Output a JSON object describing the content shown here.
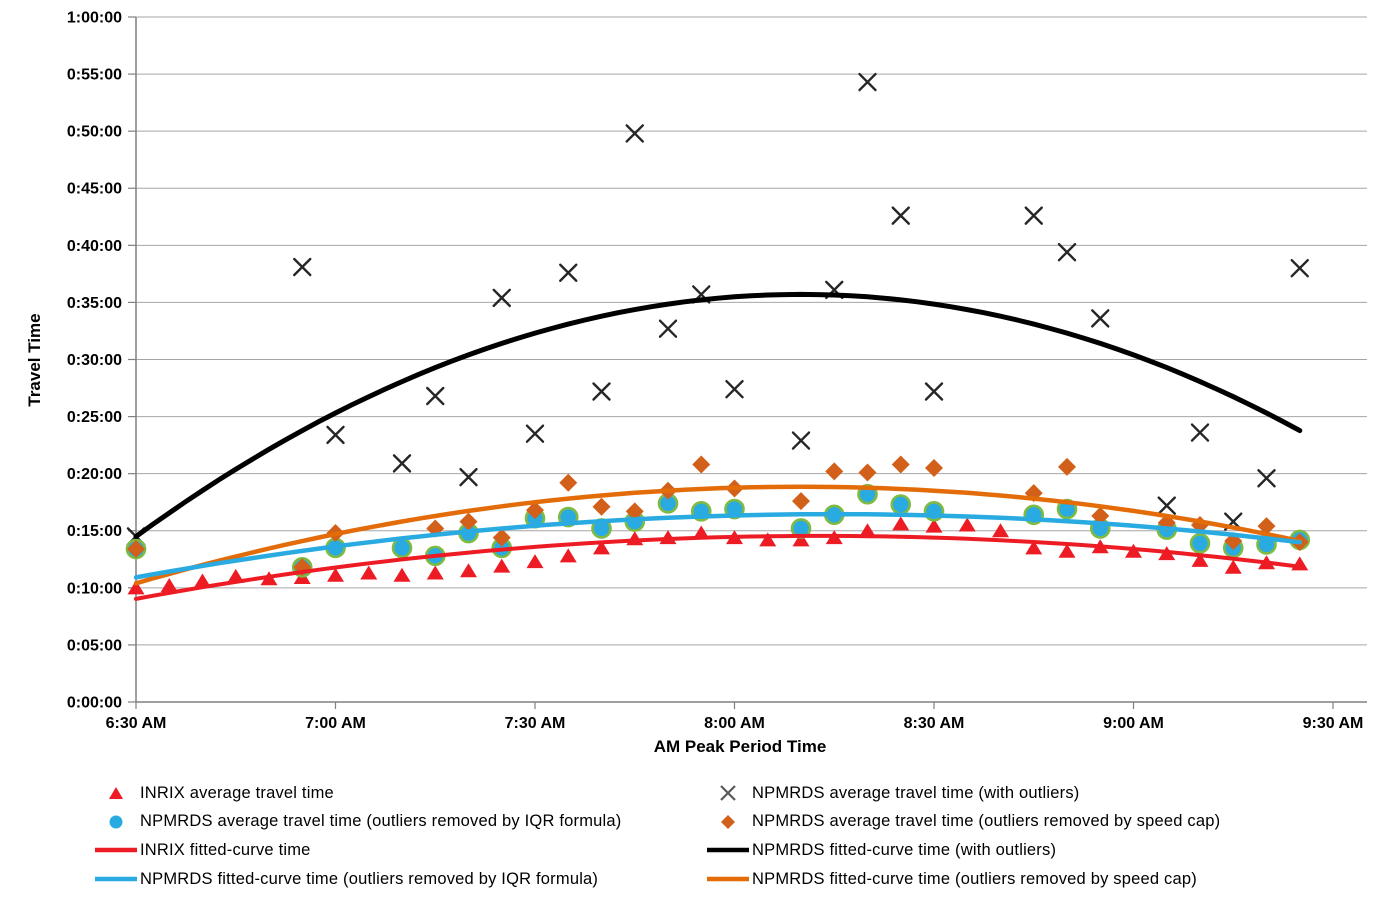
{
  "chart_data": {
    "type": "scatter",
    "title": "",
    "xlabel": "AM Peak Period Time",
    "ylabel": "Travel Time",
    "grid": true,
    "legend_position": "bottom",
    "x_axis": {
      "tick_labels": [
        "6:30 AM",
        "7:00 AM",
        "7:30 AM",
        "8:00 AM",
        "8:30 AM",
        "9:00 AM",
        "9:30 AM"
      ],
      "tick_minutes": [
        0,
        30,
        60,
        90,
        120,
        150,
        180
      ],
      "range_minutes": [
        0,
        180
      ]
    },
    "y_axis": {
      "tick_labels": [
        "0:00:00",
        "0:05:00",
        "0:10:00",
        "0:15:00",
        "0:20:00",
        "0:25:00",
        "0:30:00",
        "0:35:00",
        "0:40:00",
        "0:45:00",
        "0:50:00",
        "0:55:00",
        "1:00:00"
      ],
      "tick_minutes": [
        0,
        5,
        10,
        15,
        20,
        25,
        30,
        35,
        40,
        45,
        50,
        55,
        60
      ],
      "range_minutes": [
        0,
        60
      ]
    },
    "x_labels": [
      "6:30 AM",
      "6:35 AM",
      "6:40 AM",
      "6:45 AM",
      "6:50 AM",
      "6:55 AM",
      "7:00 AM",
      "7:05 AM",
      "7:10 AM",
      "7:15 AM",
      "7:20 AM",
      "7:25 AM",
      "7:30 AM",
      "7:35 AM",
      "7:40 AM",
      "7:45 AM",
      "7:50 AM",
      "7:55 AM",
      "8:00 AM",
      "8:05 AM",
      "8:10 AM",
      "8:15 AM",
      "8:20 AM",
      "8:25 AM",
      "8:30 AM",
      "8:35 AM",
      "8:40 AM",
      "8:45 AM",
      "8:50 AM",
      "8:55 AM",
      "9:00 AM",
      "9:05 AM",
      "9:10 AM",
      "9:15 AM",
      "9:20 AM",
      "9:25 AM"
    ],
    "x_minutes": [
      0,
      5,
      10,
      15,
      20,
      25,
      30,
      35,
      40,
      45,
      50,
      55,
      60,
      65,
      70,
      75,
      80,
      85,
      90,
      95,
      100,
      105,
      110,
      115,
      120,
      125,
      130,
      135,
      140,
      145,
      150,
      155,
      160,
      165,
      170,
      175
    ],
    "series": [
      {
        "name": "INRIX average travel time",
        "marker": "triangle",
        "color": "#ED1C24",
        "values_minutes": [
          10.0,
          10.2,
          10.6,
          11.0,
          10.8,
          10.9,
          11.1,
          11.3,
          11.1,
          11.3,
          11.5,
          11.9,
          12.3,
          12.8,
          13.5,
          14.3,
          14.4,
          14.8,
          14.4,
          14.2,
          14.2,
          14.4,
          15.0,
          15.6,
          15.4,
          15.5,
          15.0,
          13.5,
          13.2,
          13.6,
          13.2,
          13.0,
          12.4,
          11.8,
          12.2,
          12.1
        ]
      },
      {
        "name": "NPMRDS average travel time (with outliers)",
        "marker": "x",
        "color": "#262626",
        "values_minutes": [
          14.5,
          null,
          null,
          null,
          null,
          38.1,
          23.4,
          null,
          20.9,
          26.8,
          19.7,
          35.4,
          23.5,
          37.6,
          27.2,
          49.8,
          32.7,
          35.7,
          27.4,
          null,
          22.9,
          36.1,
          54.3,
          42.6,
          27.2,
          null,
          null,
          42.6,
          39.4,
          33.6,
          null,
          17.2,
          23.6,
          15.8,
          19.6,
          38.0
        ]
      },
      {
        "name": "NPMRDS average travel time (outliers removed by IQR formula)",
        "marker": "circle",
        "color": "#29ABE2",
        "outline": "#7FBA42",
        "values_minutes": [
          13.4,
          null,
          null,
          null,
          null,
          11.8,
          13.5,
          null,
          13.5,
          12.8,
          14.8,
          13.5,
          16.1,
          16.2,
          15.2,
          15.8,
          17.4,
          16.7,
          16.9,
          null,
          15.2,
          16.4,
          18.2,
          17.3,
          16.7,
          null,
          null,
          16.4,
          16.9,
          15.2,
          null,
          15.1,
          13.9,
          13.5,
          13.8,
          14.2
        ]
      },
      {
        "name": "NPMRDS average travel time (outliers removed by speed cap)",
        "marker": "diamond",
        "color": "#D2601A",
        "values_minutes": [
          13.4,
          null,
          null,
          null,
          null,
          11.8,
          14.8,
          null,
          null,
          15.2,
          15.8,
          14.4,
          16.8,
          19.2,
          17.1,
          16.7,
          18.5,
          20.8,
          18.7,
          null,
          17.6,
          20.2,
          20.1,
          20.8,
          20.5,
          null,
          null,
          18.3,
          20.6,
          16.3,
          null,
          15.7,
          15.5,
          14.1,
          15.4,
          14.0
        ]
      }
    ],
    "fitted_curves": [
      {
        "name": "NPMRDS fitted-curve time (with outliers)",
        "color": "#000000",
        "width": 5,
        "peak_value_minutes": 35.7,
        "peak_at_minute": 100,
        "curvature": 0.00212,
        "start_value_minutes": 14.5,
        "end_value_minutes": 23.8,
        "t_range": [
          0,
          175
        ]
      },
      {
        "name": "NPMRDS fitted-curve time (outliers removed by speed cap)",
        "color": "#E36C09",
        "width": 4.5,
        "peak_value_minutes": 18.85,
        "peak_at_minute": 100,
        "curvature": 0.000845,
        "start_value_minutes": 10.4,
        "end_value_minutes": 14.1,
        "t_range": [
          0,
          175
        ]
      },
      {
        "name": "NPMRDS fitted-curve time (outliers removed by IQR formula)",
        "color": "#29ABE2",
        "width": 4.5,
        "peak_value_minutes": 16.45,
        "peak_at_minute": 105,
        "curvature": 0.000502,
        "start_value_minutes": 10.9,
        "end_value_minutes": 14.0,
        "t_range": [
          0,
          175
        ]
      },
      {
        "name": "INRIX fitted-curve time",
        "color": "#ED1C24",
        "width": 4,
        "peak_value_minutes": 14.55,
        "peak_at_minute": 103,
        "curvature": 0.00052,
        "start_value_minutes": 9.0,
        "end_value_minutes": 11.9,
        "t_range": [
          0,
          175
        ]
      }
    ],
    "legend": {
      "columns": 2,
      "items": [
        {
          "label": "INRIX average travel time",
          "marker": "triangle",
          "color": "#ED1C24"
        },
        {
          "label": "NPMRDS average travel time (with outliers)",
          "marker": "x",
          "color": "#595959"
        },
        {
          "label": "NPMRDS average travel time (outliers removed by IQR formula)",
          "marker": "circle",
          "color": "#29ABE2"
        },
        {
          "label": "NPMRDS average travel time (outliers removed by speed cap)",
          "marker": "diamond",
          "color": "#D2601A"
        },
        {
          "label": "INRIX fitted-curve time",
          "marker": "line",
          "color": "#ED1C24"
        },
        {
          "label": "NPMRDS fitted-curve time (with outliers)",
          "marker": "line",
          "color": "#000000"
        },
        {
          "label": "NPMRDS fitted-curve time (outliers removed by IQR formula)",
          "marker": "line",
          "color": "#29ABE2"
        },
        {
          "label": "NPMRDS fitted-curve time (outliers removed by speed cap)",
          "marker": "line",
          "color": "#E36C09"
        }
      ]
    },
    "colors": {
      "gridline": "#A6A6A6",
      "axis": "#808080",
      "text": "#000000"
    }
  }
}
